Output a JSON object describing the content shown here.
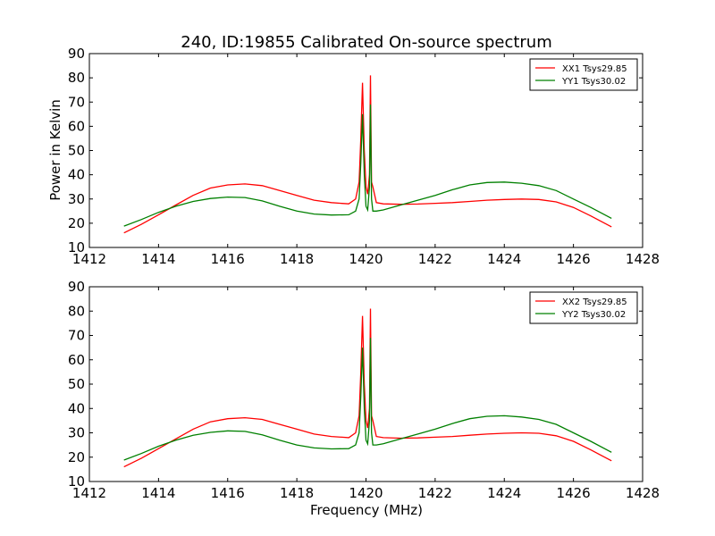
{
  "chart_data": [
    {
      "type": "line",
      "title": "240, ID:19855 Calibrated On-source spectrum",
      "xlabel": "",
      "ylabel": "Power in Kelvin",
      "xlim": [
        1412,
        1428
      ],
      "ylim": [
        10,
        90
      ],
      "xticks": [
        "1412",
        "1414",
        "1416",
        "1418",
        "1420",
        "1422",
        "1424",
        "1426",
        "1428"
      ],
      "yticks": [
        "10",
        "20",
        "30",
        "40",
        "50",
        "60",
        "70",
        "80",
        "90"
      ],
      "grid": false,
      "legend_position": "top-right",
      "series": [
        {
          "name": "XX1 Tsys29.85",
          "color": "#ff0000",
          "x": [
            1413.0,
            1413.5,
            1414.0,
            1414.5,
            1415.0,
            1415.5,
            1416.0,
            1416.5,
            1417.0,
            1417.5,
            1418.0,
            1418.5,
            1419.0,
            1419.5,
            1419.7,
            1419.8,
            1419.85,
            1419.9,
            1419.95,
            1420.0,
            1420.05,
            1420.1,
            1420.13,
            1420.16,
            1420.2,
            1420.3,
            1420.5,
            1421.0,
            1421.5,
            1422.0,
            1422.5,
            1423.0,
            1423.5,
            1424.0,
            1424.5,
            1425.0,
            1425.5,
            1426.0,
            1426.5,
            1427.1
          ],
          "y": [
            16.0,
            19.5,
            23.5,
            27.5,
            31.5,
            34.5,
            35.8,
            36.2,
            35.5,
            33.5,
            31.5,
            29.5,
            28.5,
            28.0,
            30.0,
            37.0,
            55.0,
            78.0,
            50.0,
            35.0,
            32.0,
            40.0,
            81.0,
            37.0,
            35.0,
            28.5,
            28.0,
            27.8,
            27.9,
            28.2,
            28.5,
            29.0,
            29.5,
            29.8,
            30.0,
            29.8,
            28.8,
            26.5,
            23.0,
            18.5
          ]
        },
        {
          "name": "YY1 Tsys30.02",
          "color": "#008000",
          "x": [
            1413.0,
            1413.5,
            1414.0,
            1414.5,
            1415.0,
            1415.5,
            1416.0,
            1416.5,
            1417.0,
            1417.5,
            1418.0,
            1418.5,
            1419.0,
            1419.5,
            1419.7,
            1419.8,
            1419.85,
            1419.9,
            1419.95,
            1420.0,
            1420.05,
            1420.1,
            1420.13,
            1420.16,
            1420.2,
            1420.3,
            1420.5,
            1421.0,
            1421.5,
            1422.0,
            1422.5,
            1423.0,
            1423.5,
            1424.0,
            1424.5,
            1425.0,
            1425.5,
            1426.0,
            1426.5,
            1427.1
          ],
          "y": [
            18.8,
            21.5,
            24.5,
            27.0,
            29.0,
            30.2,
            30.8,
            30.6,
            29.2,
            27.0,
            25.0,
            23.8,
            23.4,
            23.5,
            25.0,
            30.0,
            45.0,
            65.0,
            40.0,
            27.0,
            25.5,
            35.0,
            69.0,
            30.0,
            25.0,
            25.0,
            25.5,
            27.5,
            29.5,
            31.5,
            33.8,
            35.8,
            36.8,
            37.0,
            36.5,
            35.5,
            33.5,
            30.0,
            26.5,
            22.0
          ]
        }
      ]
    },
    {
      "type": "line",
      "title": "",
      "xlabel": "Frequency (MHz)",
      "ylabel": "",
      "xlim": [
        1412,
        1428
      ],
      "ylim": [
        10,
        90
      ],
      "xticks": [
        "1412",
        "1414",
        "1416",
        "1418",
        "1420",
        "1422",
        "1424",
        "1426",
        "1428"
      ],
      "yticks": [
        "10",
        "20",
        "30",
        "40",
        "50",
        "60",
        "70",
        "80",
        "90"
      ],
      "grid": false,
      "legend_position": "top-right",
      "series": [
        {
          "name": "XX2 Tsys29.85",
          "color": "#ff0000",
          "x": [
            1413.0,
            1413.5,
            1414.0,
            1414.5,
            1415.0,
            1415.5,
            1416.0,
            1416.5,
            1417.0,
            1417.5,
            1418.0,
            1418.5,
            1419.0,
            1419.5,
            1419.7,
            1419.8,
            1419.85,
            1419.9,
            1419.95,
            1420.0,
            1420.05,
            1420.1,
            1420.13,
            1420.16,
            1420.2,
            1420.3,
            1420.5,
            1421.0,
            1421.5,
            1422.0,
            1422.5,
            1423.0,
            1423.5,
            1424.0,
            1424.5,
            1425.0,
            1425.5,
            1426.0,
            1426.5,
            1427.1
          ],
          "y": [
            16.0,
            19.5,
            23.5,
            27.5,
            31.5,
            34.5,
            35.8,
            36.2,
            35.5,
            33.5,
            31.5,
            29.5,
            28.5,
            28.0,
            30.0,
            37.0,
            55.0,
            78.0,
            50.0,
            35.0,
            32.0,
            40.0,
            81.0,
            37.0,
            35.0,
            28.5,
            28.0,
            27.8,
            27.9,
            28.2,
            28.5,
            29.0,
            29.5,
            29.8,
            30.0,
            29.8,
            28.8,
            26.5,
            23.0,
            18.5
          ]
        },
        {
          "name": "YY2 Tsys30.02",
          "color": "#008000",
          "x": [
            1413.0,
            1413.5,
            1414.0,
            1414.5,
            1415.0,
            1415.5,
            1416.0,
            1416.5,
            1417.0,
            1417.5,
            1418.0,
            1418.5,
            1419.0,
            1419.5,
            1419.7,
            1419.8,
            1419.85,
            1419.9,
            1419.95,
            1420.0,
            1420.05,
            1420.1,
            1420.13,
            1420.16,
            1420.2,
            1420.3,
            1420.5,
            1421.0,
            1421.5,
            1422.0,
            1422.5,
            1423.0,
            1423.5,
            1424.0,
            1424.5,
            1425.0,
            1425.5,
            1426.0,
            1426.5,
            1427.1
          ],
          "y": [
            18.8,
            21.5,
            24.5,
            27.0,
            29.0,
            30.2,
            30.8,
            30.6,
            29.2,
            27.0,
            25.0,
            23.8,
            23.4,
            23.5,
            25.0,
            30.0,
            45.0,
            65.0,
            40.0,
            27.0,
            25.5,
            35.0,
            69.0,
            30.0,
            25.0,
            25.0,
            25.5,
            27.5,
            29.5,
            31.5,
            33.8,
            35.8,
            36.8,
            37.0,
            36.5,
            35.5,
            33.5,
            30.0,
            26.5,
            22.0
          ]
        }
      ]
    }
  ]
}
